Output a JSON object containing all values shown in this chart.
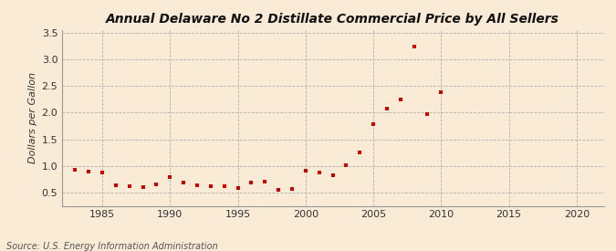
{
  "title": "Annual Delaware No 2 Distillate Commercial Price by All Sellers",
  "ylabel": "Dollars per Gallon",
  "source": "Source: U.S. Energy Information Administration",
  "background_color": "#faebd7",
  "marker_color": "#cc0000",
  "xlim": [
    1982,
    2022
  ],
  "ylim": [
    0.25,
    3.55
  ],
  "xticks": [
    1985,
    1990,
    1995,
    2000,
    2005,
    2010,
    2015,
    2020
  ],
  "yticks": [
    0.5,
    1.0,
    1.5,
    2.0,
    2.5,
    3.0,
    3.5
  ],
  "years": [
    1983,
    1984,
    1985,
    1986,
    1987,
    1988,
    1989,
    1990,
    1991,
    1992,
    1993,
    1994,
    1995,
    1996,
    1997,
    1998,
    1999,
    2000,
    2001,
    2002,
    2003,
    2004,
    2005,
    2006,
    2007,
    2008,
    2009,
    2010
  ],
  "values": [
    0.92,
    0.9,
    0.87,
    0.63,
    0.62,
    0.6,
    0.66,
    0.79,
    0.68,
    0.64,
    0.62,
    0.61,
    0.59,
    0.68,
    0.7,
    0.55,
    0.57,
    0.91,
    0.87,
    0.82,
    1.01,
    1.26,
    1.79,
    2.08,
    2.24,
    3.24,
    1.97,
    2.39
  ],
  "title_fontsize": 10,
  "ylabel_fontsize": 8,
  "tick_fontsize": 8,
  "source_fontsize": 7
}
